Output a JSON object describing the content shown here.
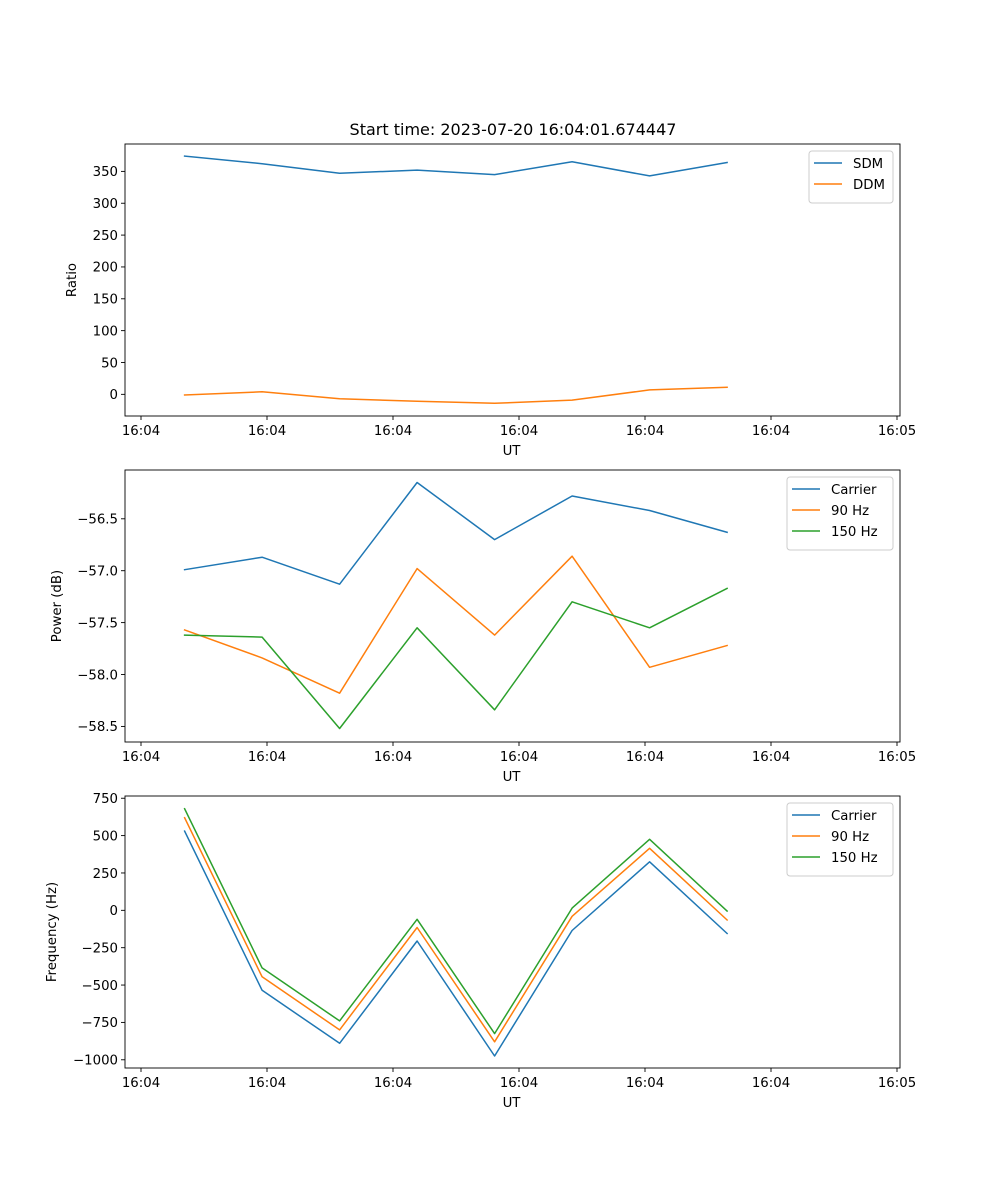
{
  "title": "Start time: 2023-07-20 16:04:01.674447",
  "chart_data": [
    {
      "type": "line",
      "name": "ratio",
      "ylabel": "Ratio",
      "xlabel": "UT",
      "x_ticks": [
        "16:04",
        "16:04",
        "16:04",
        "16:04",
        "16:04",
        "16:04",
        "16:04"
      ],
      "x_last_tick": "16:05",
      "xlim": [
        0,
        6.5
      ],
      "x_points": [
        0.5,
        1.15,
        1.8,
        2.45,
        3.1,
        3.75,
        4.4,
        5.05
      ],
      "ylim": [
        -34,
        393
      ],
      "yticks": [
        0,
        50,
        100,
        150,
        200,
        250,
        300,
        350
      ],
      "ytick_labels": [
        "0",
        "50",
        "100",
        "150",
        "200",
        "250",
        "300",
        "350"
      ],
      "legend_position": "top-right",
      "series": [
        {
          "name": "SDM",
          "color": "#1f77b4",
          "values": [
            374,
            362,
            347,
            352,
            345,
            365,
            343,
            364
          ]
        },
        {
          "name": "DDM",
          "color": "#ff7f0e",
          "values": [
            -1,
            4,
            -7,
            -11,
            -14,
            -9,
            7,
            11
          ]
        }
      ]
    },
    {
      "type": "line",
      "name": "power",
      "ylabel": "Power (dB)",
      "xlabel": "UT",
      "x_ticks": [
        "16:04",
        "16:04",
        "16:04",
        "16:04",
        "16:04",
        "16:04",
        "16:04"
      ],
      "x_last_tick": "16:05",
      "xlim": [
        0,
        6.5
      ],
      "x_points": [
        0.5,
        1.15,
        1.8,
        2.45,
        3.1,
        3.75,
        4.4,
        5.05
      ],
      "ylim": [
        -58.65,
        -56.03
      ],
      "yticks": [
        -58.5,
        -58.0,
        -57.5,
        -57.0,
        -56.5
      ],
      "ytick_labels": [
        "−58.5",
        "−58.0",
        "−57.5",
        "−57.0",
        "−56.5"
      ],
      "legend_position": "top-right",
      "series": [
        {
          "name": "Carrier",
          "color": "#1f77b4",
          "values": [
            -56.99,
            -56.87,
            -57.13,
            -56.15,
            -56.7,
            -56.28,
            -56.42,
            -56.63
          ]
        },
        {
          "name": "90 Hz",
          "color": "#ff7f0e",
          "values": [
            -57.57,
            -57.84,
            -58.18,
            -56.98,
            -57.62,
            -56.86,
            -57.93,
            -57.72
          ]
        },
        {
          "name": "150 Hz",
          "color": "#2ca02c",
          "values": [
            -57.62,
            -57.64,
            -58.52,
            -57.55,
            -58.34,
            -57.3,
            -57.55,
            -57.17
          ]
        }
      ]
    },
    {
      "type": "line",
      "name": "frequency",
      "ylabel": "Frequency (Hz)",
      "xlabel": "UT",
      "x_ticks": [
        "16:04",
        "16:04",
        "16:04",
        "16:04",
        "16:04",
        "16:04",
        "16:04"
      ],
      "x_last_tick": "16:05",
      "xlim": [
        0,
        6.5
      ],
      "x_points": [
        0.5,
        1.15,
        1.8,
        2.45,
        3.1,
        3.75,
        4.4,
        5.05
      ],
      "ylim": [
        -1055,
        765
      ],
      "yticks": [
        -1000,
        -750,
        -500,
        -250,
        0,
        250,
        500,
        750
      ],
      "ytick_labels": [
        "−1000",
        "−750",
        "−500",
        "−250",
        "0",
        "250",
        "500",
        "750"
      ],
      "legend_position": "top-right",
      "series": [
        {
          "name": "Carrier",
          "color": "#1f77b4",
          "values": [
            530,
            -535,
            -890,
            -205,
            -975,
            -135,
            325,
            -155
          ]
        },
        {
          "name": "90 Hz",
          "color": "#ff7f0e",
          "values": [
            620,
            -445,
            -800,
            -115,
            -880,
            -40,
            415,
            -65
          ]
        },
        {
          "name": "150 Hz",
          "color": "#2ca02c",
          "values": [
            680,
            -385,
            -740,
            -60,
            -825,
            15,
            475,
            -5
          ]
        }
      ]
    }
  ]
}
